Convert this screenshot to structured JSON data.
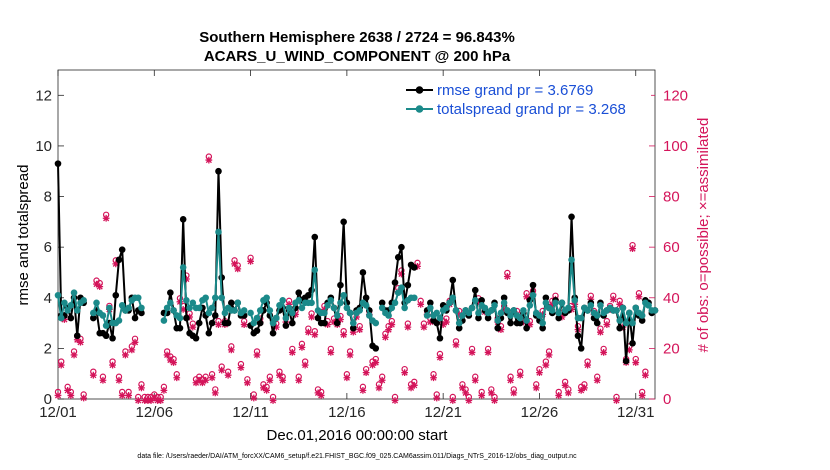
{
  "colors": {
    "rmse": "#000000",
    "spread": "#1b8a8a",
    "obs": "#d4145a",
    "legend_text": "#1a4fd6"
  },
  "chart_data": {
    "type": "line",
    "title_line1": "Southern Hemisphere 2638 / 2724 = 96.843%",
    "title_line2": "ACARS_U_WIND_COMPONENT @ 200 hPa",
    "xlabel": "Dec.01,2016 00:00:00 start",
    "ylabel_left": "rmse and totalspread",
    "ylabel_right": "# of obs: o=possible; ×=assimilated",
    "x_tick_labels": [
      "12/01",
      "12/06",
      "12/11",
      "12/16",
      "12/21",
      "12/26",
      "12/31"
    ],
    "x_tick_values": [
      0,
      5,
      10,
      15,
      20,
      25,
      30
    ],
    "xlim": [
      0,
      31
    ],
    "ylim_left": [
      0,
      13
    ],
    "yticks_left": [
      0,
      2,
      4,
      6,
      8,
      10,
      12
    ],
    "ylim_right": [
      0,
      130
    ],
    "yticks_right": [
      0,
      20,
      40,
      60,
      80,
      100,
      120
    ],
    "footnote": "data file: /Users/raeder/DAI/ATM_forcXX/CAM6_setup/f.e21.FHIST_BGC.f09_025.CAM6assim.011/Diags_NTrS_2016-12/obs_diag_output.nc",
    "legend": [
      {
        "label": "rmse grand pr = 3.6769",
        "series": "rmse"
      },
      {
        "label": "totalspread grand pr = 3.268",
        "series": "spread"
      }
    ],
    "series": [
      {
        "name": "rmse",
        "axis": "left",
        "values": [
          9.3,
          3.3,
          3.3,
          3.6,
          3.2,
          4.0,
          2.5,
          4.0,
          3.8,
          null,
          null,
          3.2,
          3.5,
          2.6,
          2.6,
          2.5,
          3.0,
          2.4,
          4.1,
          5.5,
          5.9,
          3.5,
          3.5,
          4.0,
          3.2,
          3.5,
          3.4,
          null,
          null,
          null,
          null,
          null,
          null,
          3.4,
          3.4,
          4.2,
          3.5,
          2.8,
          2.8,
          7.1,
          3.2,
          2.6,
          2.5,
          2.4,
          3.0,
          3.6,
          3.3,
          2.6,
          3.0,
          3.3,
          9.0,
          4.8,
          3.0,
          3.0,
          3.8,
          3.5,
          3.8,
          3.3,
          3.3,
          null,
          2.9,
          2.6,
          2.7,
          3.0,
          3.5,
          3.8,
          3.3,
          2.6,
          3.2,
          3.5,
          3.6,
          2.9,
          3.5,
          3.0,
          3.6,
          4.2,
          3.9,
          4.0,
          4.1,
          4.3,
          6.4,
          3.2,
          3.0,
          3.0,
          3.8,
          4.0,
          3.6,
          3.0,
          4.5,
          7.0,
          3.8,
          3.4,
          2.8,
          3.5,
          3.6,
          5.0,
          4.0,
          3.5,
          2.1,
          2.0,
          null,
          3.8,
          3.5,
          3.5,
          3.8,
          4.6,
          5.6,
          6.0,
          3.8,
          4.5,
          5.3,
          5.2,
          null,
          null,
          null,
          3.5,
          3.8,
          3.1,
          3.0,
          2.4,
          3.7,
          3.5,
          3.8,
          4.7,
          3.5,
          2.8,
          3.1,
          3.5,
          3.3,
          3.6,
          4.3,
          3.2,
          3.9,
          3.5,
          3.2,
          3.5,
          3.8,
          2.8,
          3.2,
          4.0,
          3.4,
          3.0,
          3.5,
          3.0,
          3.0,
          3.4,
          2.8,
          3.9,
          4.5,
          3.3,
          3.1,
          2.8,
          4.0,
          3.6,
          3.4,
          3.9,
          3.2,
          3.8,
          3.4,
          3.5,
          7.2,
          4.0,
          2.5,
          2.0,
          3.6,
          3.5,
          3.8,
          3.2,
          3.0,
          3.8,
          3.3,
          3.5,
          3.6,
          3.5,
          3.5,
          2.8,
          3.6,
          1.5,
          3.4,
          2.2,
          3.6,
          3.3,
          3.1,
          3.9,
          3.8,
          3.4,
          3.5
        ],
        "cross_check": "rmse_curve"
      },
      {
        "name": "spread",
        "axis": "left",
        "values": [
          4.1,
          3.2,
          3.8,
          3.5,
          3.7,
          4.2,
          3.5,
          3.8,
          3.9,
          null,
          null,
          3.4,
          3.8,
          3.4,
          3.3,
          2.9,
          3.6,
          3.0,
          3.0,
          3.1,
          3.7,
          3.5,
          3.6,
          3.9,
          4.0,
          4.0,
          3.6,
          null,
          null,
          null,
          null,
          null,
          null,
          3.1,
          3.6,
          3.8,
          3.5,
          3.3,
          3.2,
          5.2,
          3.9,
          3.6,
          3.8,
          3.6,
          3.6,
          3.9,
          4.0,
          3.4,
          3.6,
          4.0,
          6.6,
          4.0,
          3.4,
          3.6,
          3.5,
          3.5,
          3.8,
          3.4,
          3.5,
          null,
          3.4,
          3.0,
          3.2,
          3.5,
          3.9,
          4.0,
          3.5,
          3.0,
          3.2,
          3.7,
          3.9,
          3.2,
          3.6,
          3.4,
          3.8,
          3.9,
          3.6,
          3.8,
          3.8,
          3.8,
          5.1,
          3.5,
          3.4,
          3.4,
          3.7,
          3.9,
          3.6,
          3.3,
          3.8,
          4.1,
          3.6,
          3.4,
          3.0,
          3.4,
          3.5,
          3.8,
          3.7,
          3.3,
          3.1,
          3.0,
          null,
          3.6,
          3.4,
          3.3,
          3.6,
          3.8,
          4.2,
          4.4,
          3.6,
          3.9,
          4.0,
          4.0,
          null,
          null,
          null,
          3.3,
          3.6,
          3.3,
          3.4,
          3.2,
          3.5,
          3.6,
          3.8,
          4.0,
          3.5,
          3.0,
          3.3,
          3.5,
          3.4,
          3.6,
          3.9,
          3.4,
          3.7,
          3.6,
          3.4,
          3.5,
          3.7,
          3.1,
          3.4,
          3.8,
          3.5,
          3.3,
          3.5,
          3.3,
          3.2,
          3.5,
          3.1,
          3.7,
          4.1,
          3.4,
          3.3,
          3.0,
          3.8,
          3.6,
          3.5,
          3.8,
          3.4,
          3.8,
          3.5,
          3.6,
          5.5,
          3.9,
          3.2,
          3.2,
          3.6,
          3.5,
          3.7,
          3.4,
          3.3,
          3.7,
          3.4,
          3.5,
          3.6,
          3.5,
          3.5,
          3.1,
          3.6,
          3.0,
          3.4,
          3.0,
          3.6,
          3.4,
          3.3,
          3.8,
          3.7,
          3.5,
          3.5
        ]
      },
      {
        "name": "obs_possible",
        "axis": "right",
        "values": [
          2,
          14,
          32,
          4,
          2,
          18,
          24,
          23,
          1,
          null,
          null,
          10,
          46,
          45,
          8,
          72,
          36,
          14,
          54,
          8,
          2,
          18,
          2,
          20,
          23,
          0,
          5,
          0,
          0,
          0,
          1,
          0,
          0,
          4,
          18,
          16,
          15,
          9,
          39,
          36,
          48,
          33,
          29,
          7,
          8,
          7,
          8,
          95,
          9,
          3,
          30,
          12,
          30,
          10,
          20,
          54,
          52,
          13,
          30,
          7,
          55,
          1,
          18,
          31,
          5,
          4,
          8,
          0,
          29,
          10,
          8,
          31,
          38,
          19,
          34,
          8,
          21,
          14,
          27,
          33,
          26,
          3,
          2,
          36,
          30,
          19,
          31,
          30,
          32,
          26,
          9,
          18,
          27,
          33,
          28,
          4,
          11,
          34,
          14,
          15,
          5,
          8,
          25,
          28,
          30,
          0,
          43,
          50,
          11,
          29,
          5,
          6,
          53,
          38,
          29,
          34,
          31,
          9,
          1,
          17,
          30,
          31,
          38,
          0,
          22,
          34,
          5,
          3,
          0,
          19,
          8,
          39,
          2,
          35,
          19,
          3,
          0,
          31,
          28,
          36,
          49,
          8,
          3,
          34,
          10,
          31,
          41,
          30,
          42,
          5,
          11,
          34,
          14,
          18,
          38,
          40,
          2,
          33,
          6,
          3,
          36,
          38,
          28,
          4,
          5,
          14,
          40,
          34,
          8,
          27,
          19,
          30,
          36,
          40,
          0,
          38,
          29,
          15,
          20,
          60,
          15,
          41,
          2,
          10
        ],
        "marker": "o"
      },
      {
        "name": "obs_assimilated",
        "axis": "right",
        "values": [
          2,
          14,
          32,
          4,
          2,
          18,
          24,
          23,
          1,
          null,
          null,
          10,
          46,
          45,
          8,
          72,
          36,
          14,
          54,
          8,
          2,
          18,
          2,
          20,
          23,
          0,
          5,
          0,
          0,
          0,
          1,
          0,
          0,
          4,
          18,
          16,
          15,
          9,
          39,
          36,
          48,
          33,
          29,
          7,
          8,
          7,
          8,
          95,
          9,
          3,
          30,
          12,
          30,
          10,
          20,
          54,
          52,
          13,
          30,
          7,
          55,
          1,
          18,
          31,
          5,
          4,
          8,
          0,
          29,
          10,
          8,
          31,
          38,
          19,
          34,
          8,
          21,
          14,
          27,
          33,
          26,
          3,
          2,
          36,
          30,
          19,
          31,
          30,
          32,
          26,
          9,
          18,
          27,
          33,
          28,
          4,
          11,
          34,
          14,
          15,
          5,
          8,
          25,
          28,
          30,
          0,
          43,
          50,
          11,
          29,
          5,
          6,
          53,
          38,
          29,
          34,
          31,
          9,
          1,
          17,
          30,
          31,
          38,
          0,
          22,
          34,
          5,
          3,
          0,
          19,
          8,
          39,
          2,
          35,
          19,
          3,
          0,
          31,
          28,
          36,
          49,
          8,
          3,
          34,
          10,
          31,
          41,
          30,
          42,
          5,
          11,
          34,
          14,
          18,
          38,
          40,
          2,
          33,
          6,
          3,
          36,
          38,
          28,
          4,
          5,
          14,
          40,
          34,
          8,
          27,
          19,
          30,
          36,
          40,
          0,
          38,
          29,
          15,
          20,
          60,
          15,
          41,
          2,
          10
        ],
        "marker": "x"
      }
    ]
  }
}
